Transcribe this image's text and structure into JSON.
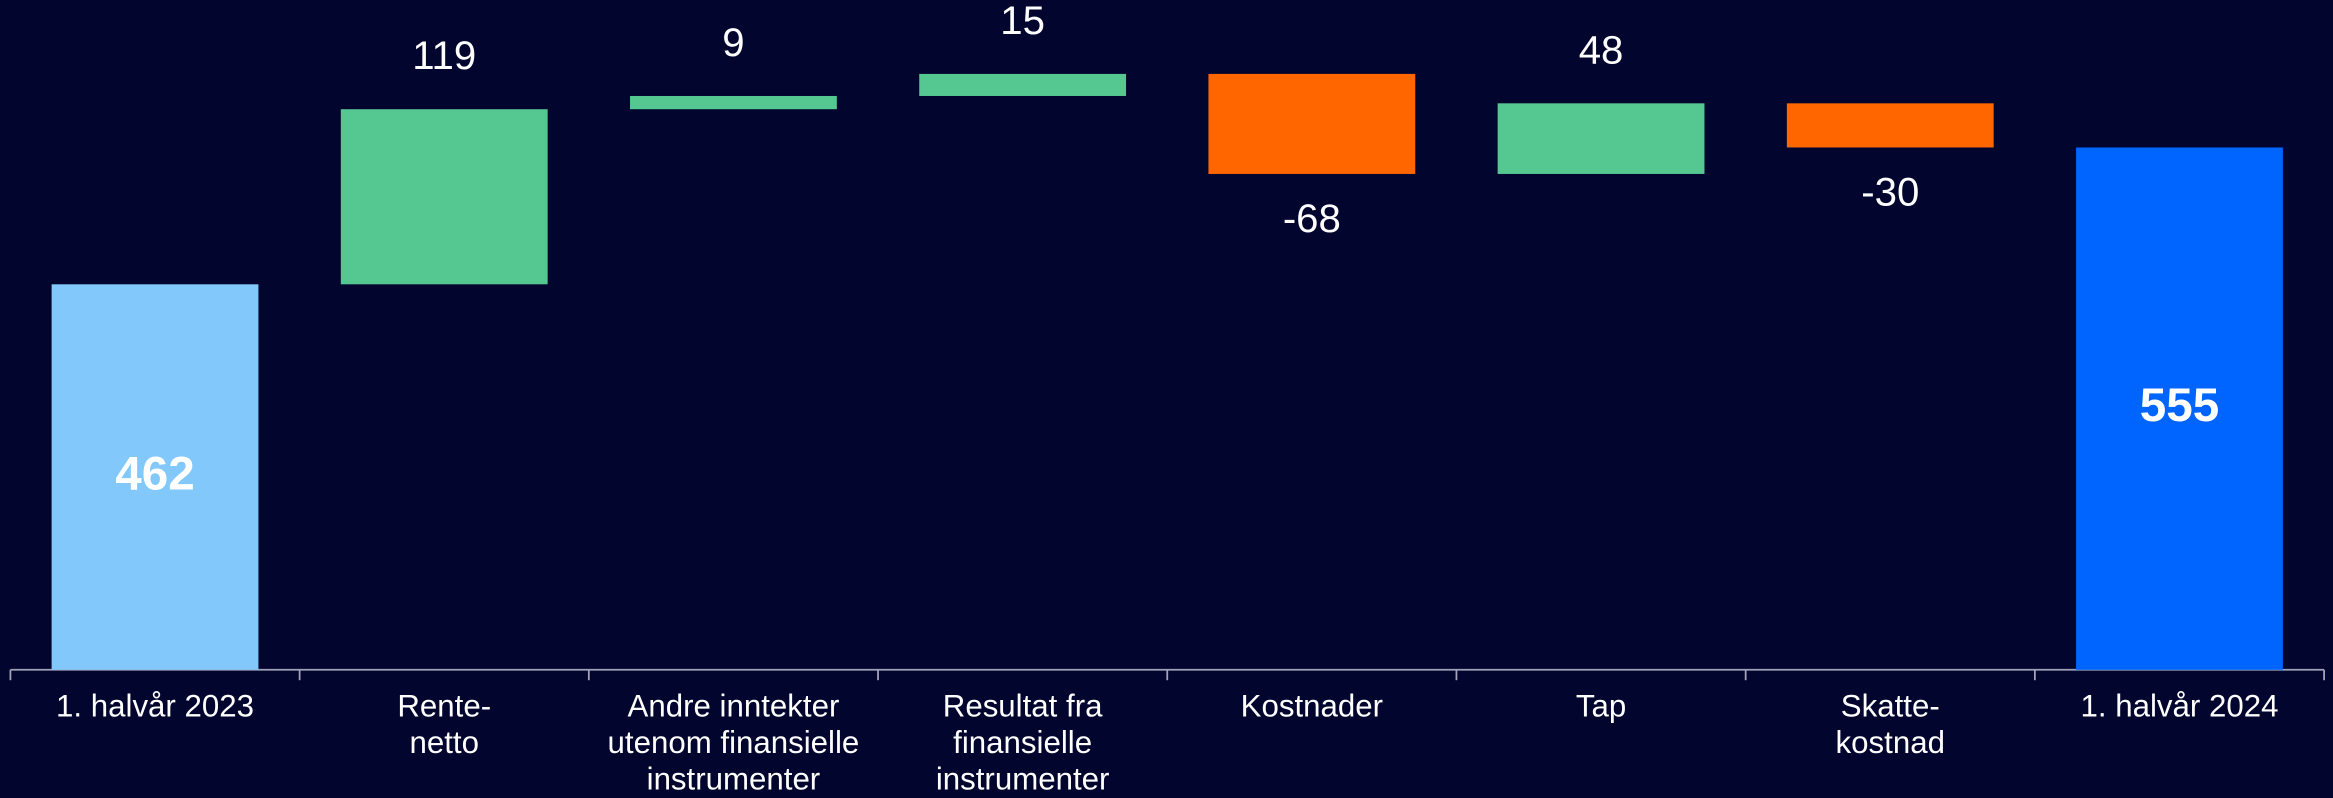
{
  "chart_data": {
    "type": "waterfall",
    "categories": [
      "1. halvår 2023",
      "Rente-\nnetto",
      "Andre inntekter\nutenom finansielle\ninstrumenter",
      "Resultat fra\nfinansielle\ninstrumenter",
      "Kostnader",
      "Tap",
      "Skatte-\nkostnad",
      "1. halvår 2024"
    ],
    "values": [
      462,
      119,
      9,
      15,
      -68,
      48,
      -30,
      555
    ],
    "measure": [
      "total",
      "relative",
      "relative",
      "relative",
      "relative",
      "relative",
      "relative",
      "total"
    ],
    "colors": [
      "#82c8fa",
      "#55c891",
      "#55c891",
      "#55c891",
      "#ff6600",
      "#55c891",
      "#ff6600",
      "#0064ff"
    ],
    "ylim": [
      200,
      650
    ]
  }
}
